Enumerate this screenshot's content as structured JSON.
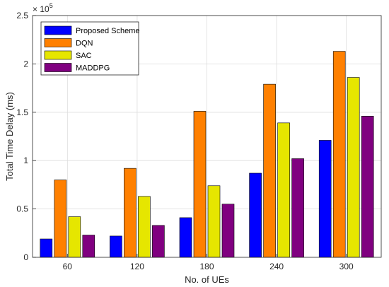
{
  "chart_data": {
    "type": "bar",
    "categories": [
      "60",
      "120",
      "180",
      "240",
      "300"
    ],
    "series": [
      {
        "name": "Proposed Scheme",
        "color": "#0000ff",
        "values": [
          19000,
          22000,
          41000,
          87000,
          121000
        ]
      },
      {
        "name": "DQN",
        "color": "#ff8000",
        "values": [
          80000,
          92000,
          151000,
          179000,
          213000
        ]
      },
      {
        "name": "SAC",
        "color": "#e6e600",
        "values": [
          42000,
          63000,
          74000,
          139000,
          186000
        ]
      },
      {
        "name": "MADDPG",
        "color": "#800080",
        "values": [
          23000,
          33000,
          55000,
          102000,
          146000
        ]
      }
    ],
    "title": "",
    "xlabel": "No. of UEs",
    "ylabel": "Total Time Delay (ms)",
    "ylim": [
      0,
      250000
    ],
    "yticks": [
      0,
      50000,
      100000,
      150000,
      200000,
      250000
    ],
    "ytick_labels": [
      "0",
      "0.5",
      "1",
      "1.5",
      "2",
      "2.5"
    ],
    "y_exponent": {
      "base": "× 10",
      "power": "5"
    },
    "grid": true,
    "legend_position": "top-left"
  }
}
